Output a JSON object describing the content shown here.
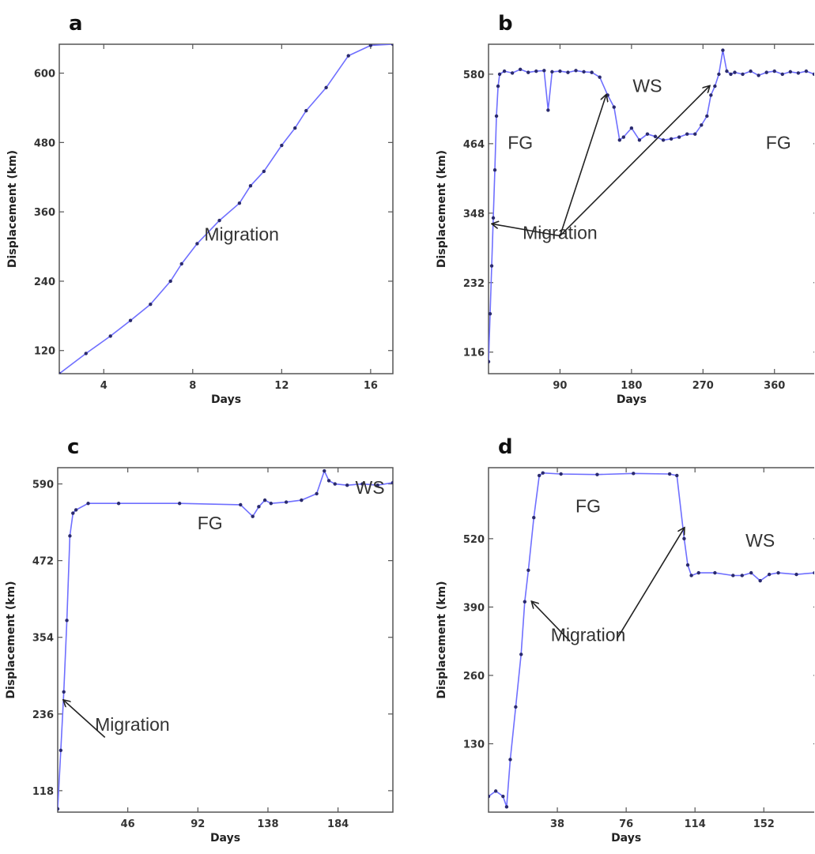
{
  "chart_data": [
    {
      "panel_label": "a",
      "type": "line",
      "xlabel": "Days",
      "ylabel": "Displacement (km)",
      "xlim": [
        2,
        17
      ],
      "ylim": [
        80,
        650
      ],
      "xticks": [
        4,
        8,
        12,
        16
      ],
      "yticks": [
        120,
        240,
        360,
        480,
        600
      ],
      "series": [
        {
          "x": [
            2,
            3.2,
            4.3,
            5.2,
            6.1,
            7,
            7.5,
            8.2,
            9.2,
            10.1,
            10.6,
            11.2,
            12,
            12.6,
            13.1,
            14,
            15,
            16,
            17
          ],
          "y": [
            80,
            115,
            145,
            172,
            200,
            240,
            270,
            305,
            345,
            375,
            405,
            430,
            475,
            505,
            535,
            575,
            630,
            648,
            650
          ]
        }
      ],
      "annotations": [
        {
          "text": "Migration",
          "x": 10.2,
          "y": 310
        }
      ]
    },
    {
      "panel_label": "b",
      "type": "line",
      "xlabel": "Days",
      "ylabel": "Displacement (km)",
      "xlim": [
        0,
        415
      ],
      "ylim": [
        80,
        630
      ],
      "xticks": [
        90,
        180,
        270,
        360
      ],
      "yticks": [
        116,
        232,
        348,
        464,
        580
      ],
      "series": [
        {
          "x": [
            0,
            2,
            4,
            6,
            8,
            10,
            12,
            14,
            20,
            30,
            40,
            50,
            60,
            70,
            75,
            80,
            90,
            100,
            110,
            120,
            130,
            140,
            150,
            158,
            165,
            170,
            180,
            190,
            200,
            210,
            220,
            230,
            240,
            250,
            260,
            268,
            275,
            280,
            285,
            290,
            295,
            300,
            305,
            310,
            320,
            330,
            340,
            350,
            360,
            370,
            380,
            390,
            400,
            410,
            415
          ],
          "y": [
            100,
            180,
            260,
            340,
            420,
            510,
            560,
            580,
            585,
            582,
            588,
            583,
            585,
            586,
            520,
            584,
            585,
            583,
            586,
            584,
            583,
            575,
            545,
            525,
            470,
            475,
            490,
            470,
            480,
            476,
            470,
            472,
            475,
            480,
            480,
            495,
            510,
            545,
            560,
            580,
            620,
            585,
            580,
            583,
            580,
            585,
            578,
            583,
            585,
            580,
            584,
            582,
            585,
            580,
            583
          ]
        }
      ],
      "annotations": [
        {
          "text": "FG",
          "x": 40,
          "y": 455
        },
        {
          "text": "WS",
          "x": 200,
          "y": 550
        },
        {
          "text": "FG",
          "x": 365,
          "y": 455
        },
        {
          "text": "Migration",
          "x": 90,
          "y": 305
        }
      ]
    },
    {
      "panel_label": "c",
      "type": "line",
      "xlabel": "Days",
      "ylabel": "Displacement (km)",
      "xlim": [
        0,
        220
      ],
      "ylim": [
        85,
        615
      ],
      "xticks": [
        46,
        92,
        138,
        184
      ],
      "yticks": [
        118,
        236,
        354,
        472,
        590
      ],
      "series": [
        {
          "x": [
            0,
            2,
            4,
            6,
            8,
            10,
            12,
            20,
            40,
            80,
            120,
            128,
            132,
            136,
            140,
            150,
            160,
            170,
            175,
            178,
            182,
            190,
            200,
            210,
            220
          ],
          "y": [
            90,
            180,
            270,
            380,
            510,
            545,
            550,
            560,
            560,
            560,
            558,
            540,
            555,
            565,
            560,
            562,
            565,
            575,
            610,
            595,
            590,
            588,
            590,
            588,
            592
          ]
        }
      ],
      "annotations": [
        {
          "text": "FG",
          "x": 100,
          "y": 520
        },
        {
          "text": "WS",
          "x": 205,
          "y": 575
        },
        {
          "text": "Migration",
          "x": 49,
          "y": 210
        }
      ]
    },
    {
      "panel_label": "d",
      "type": "line",
      "xlabel": "Days",
      "ylabel": "Displacement (km)",
      "xlim": [
        0,
        182
      ],
      "ylim": [
        0,
        655
      ],
      "xticks": [
        38,
        76,
        114,
        152
      ],
      "yticks": [
        130,
        260,
        390,
        520
      ],
      "series": [
        {
          "x": [
            0,
            4,
            8,
            10,
            12,
            15,
            18,
            20,
            22,
            25,
            28,
            30,
            40,
            60,
            80,
            100,
            104,
            108,
            110,
            112,
            116,
            125,
            135,
            140,
            145,
            150,
            155,
            160,
            170,
            180,
            182
          ],
          "y": [
            30,
            40,
            30,
            10,
            100,
            200,
            300,
            400,
            460,
            560,
            640,
            645,
            643,
            642,
            644,
            643,
            640,
            520,
            470,
            450,
            455,
            455,
            450,
            450,
            455,
            440,
            452,
            455,
            452,
            455,
            456
          ]
        }
      ],
      "annotations": [
        {
          "text": "FG",
          "x": 55,
          "y": 570
        },
        {
          "text": "WS",
          "x": 150,
          "y": 505
        },
        {
          "text": "Migration",
          "x": 55,
          "y": 325
        }
      ]
    }
  ]
}
